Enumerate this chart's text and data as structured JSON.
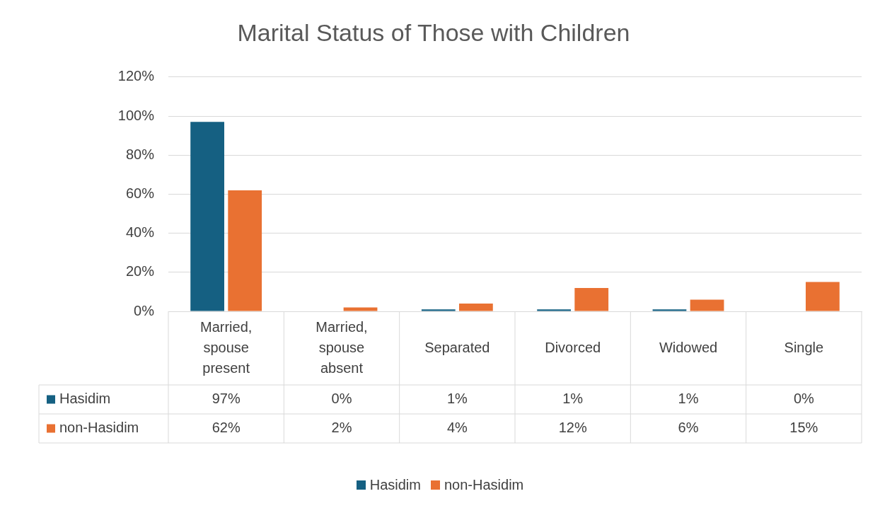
{
  "chart_data": {
    "type": "bar",
    "title": "Marital Status of Those with Children",
    "categories": [
      "Married, spouse present",
      "Married, spouse absent",
      "Separated",
      "Divorced",
      "Widowed",
      "Single"
    ],
    "series": [
      {
        "name": "Hasidim",
        "color": "#156082",
        "values": [
          97,
          0,
          1,
          1,
          1,
          0
        ],
        "value_labels": [
          "97%",
          "0%",
          "1%",
          "1%",
          "1%",
          "0%"
        ]
      },
      {
        "name": "non-Hasidim",
        "color": "#e97132",
        "values": [
          62,
          2,
          4,
          12,
          6,
          15
        ],
        "value_labels": [
          "62%",
          "2%",
          "4%",
          "12%",
          "6%",
          "15%"
        ]
      }
    ],
    "ylim": [
      0,
      120
    ],
    "yticks": [
      {
        "value": 0,
        "label": "0%"
      },
      {
        "value": 20,
        "label": "20%"
      },
      {
        "value": 40,
        "label": "40%"
      },
      {
        "value": 60,
        "label": "60%"
      },
      {
        "value": 80,
        "label": "80%"
      },
      {
        "value": 100,
        "label": "100%"
      },
      {
        "value": 120,
        "label": "120%"
      }
    ],
    "grid": "y",
    "legend": "bottom"
  }
}
